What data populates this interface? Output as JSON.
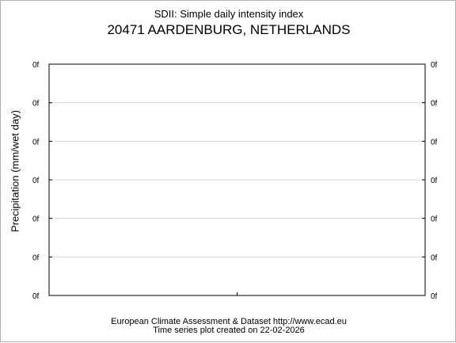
{
  "chart_data": {
    "type": "line",
    "subtitle": "SDII: Simple daily intensity index",
    "title": "20471 AARDENBURG, NETHERLANDS",
    "ylabel": "Precipitation (mm/wet day)",
    "xlabel": "",
    "y_tick_labels": [
      "0f",
      "0f",
      "0f",
      "0f",
      "0f",
      "0f",
      "0f"
    ],
    "grid": true,
    "series": []
  },
  "footer": {
    "source": "European Climate Assessment & Dataset  http://www.ecad.eu",
    "created": "Time series plot created on 22-02-2026"
  },
  "colors": {
    "grid": "#d8d8d8",
    "axis": "#000000"
  }
}
